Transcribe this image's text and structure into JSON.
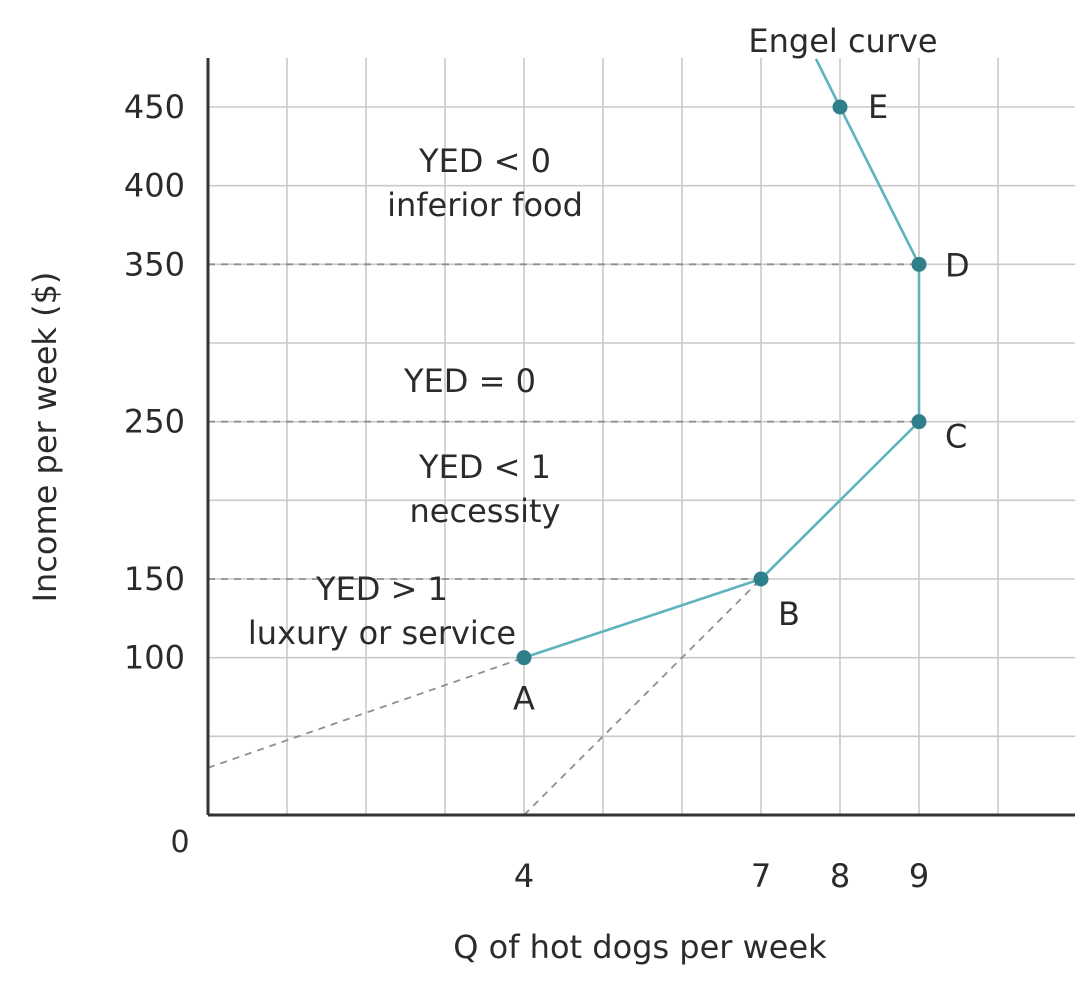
{
  "chart_data": {
    "type": "line",
    "title": "",
    "xlabel": "Q of hot dogs per week",
    "ylabel": "Income per week ($)",
    "origin_label": "0",
    "xlim": [
      0,
      11
    ],
    "ylim": [
      0,
      500
    ],
    "x_ticks": [
      4,
      7,
      8,
      9
    ],
    "y_ticks": [
      100,
      150,
      250,
      350,
      400,
      450
    ],
    "grid": true,
    "series": [
      {
        "name": "Engel curve",
        "color": "#5fb3bd",
        "points": [
          {
            "label": "A",
            "x": 4,
            "y": 100
          },
          {
            "label": "B",
            "x": 7,
            "y": 150
          },
          {
            "label": "C",
            "x": 9,
            "y": 250
          },
          {
            "label": "D",
            "x": 9,
            "y": 350
          },
          {
            "label": "E",
            "x": 8,
            "y": 450
          }
        ]
      }
    ],
    "point_color": "#2f7f8a",
    "reference_lines": [
      {
        "y": 350,
        "x_from": 0,
        "x_to": 9
      },
      {
        "y": 250,
        "x_from": 0,
        "x_to": 9
      },
      {
        "y": 150,
        "x_from": 0,
        "x_to": 7
      }
    ],
    "extension_lines": [
      {
        "from": [
          0,
          30
        ],
        "to": [
          4,
          100
        ]
      },
      {
        "from": [
          4,
          0
        ],
        "to": [
          7,
          150
        ]
      }
    ],
    "annotations": [
      {
        "id": "yed-neg",
        "lines": [
          "YED < 0",
          "inferior food"
        ]
      },
      {
        "id": "yed-zero",
        "lines": [
          "YED = 0"
        ]
      },
      {
        "id": "yed-less-one",
        "lines": [
          "YED < 1",
          "necessity"
        ]
      },
      {
        "id": "yed-greater-one",
        "lines": [
          "YED > 1",
          "luxury or service"
        ]
      }
    ]
  }
}
